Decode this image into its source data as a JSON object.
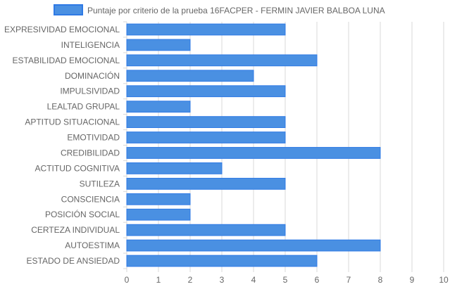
{
  "chart_data": {
    "type": "bar",
    "orientation": "horizontal",
    "categories": [
      "EXPRESIVIDAD EMOCIONAL",
      "INTELIGENCIA",
      "ESTABILIDAD EMOCIONAL",
      "DOMINACIÓN",
      "IMPULSIVIDAD",
      "LEALTAD GRUPAL",
      "APTITUD SITUACIONAL",
      "EMOTIVIDAD",
      "CREDIBILIDAD",
      "ACTITUD COGNITIVA",
      "SUTILEZA",
      "CONSCIENCIA",
      "POSICIÓN SOCIAL",
      "CERTEZA INDIVIDUAL",
      "AUTOESTIMA",
      "ESTADO DE ANSIEDAD"
    ],
    "series": [
      {
        "name": "Puntaje por criterio de la prueba 16FACPER - FERMIN JAVIER BALBOA LUNA",
        "values": [
          5,
          2,
          6,
          4,
          5,
          2,
          5,
          5,
          8,
          3,
          5,
          2,
          2,
          5,
          8,
          6
        ]
      }
    ],
    "xlim": [
      0,
      10
    ],
    "xticks": [
      "0",
      "1",
      "2",
      "3",
      "4",
      "5",
      "6",
      "7",
      "8",
      "9",
      "10"
    ],
    "grid": true,
    "legend_position": "top",
    "colors": {
      "bar_fill": "#4a90e2",
      "bar_stroke": "#2f7ae5",
      "grid": "#d9d9d9",
      "text": "#666666"
    }
  }
}
